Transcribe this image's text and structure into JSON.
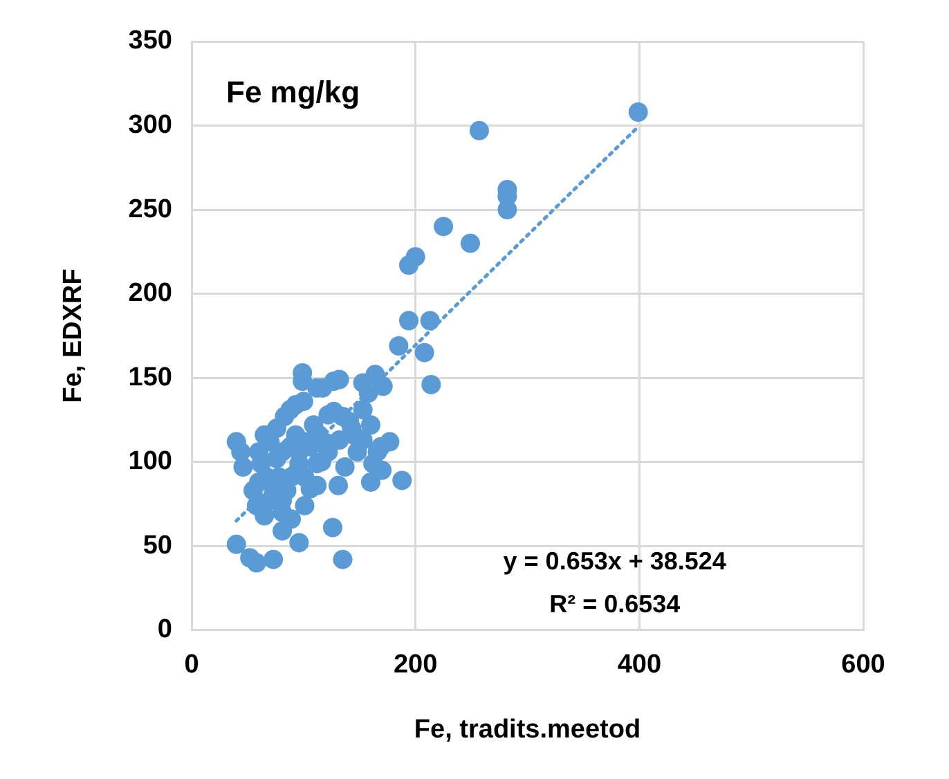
{
  "chart_data": {
    "type": "scatter",
    "title": "Fe mg/kg",
    "xlabel": "Fe, tradits.meetod",
    "ylabel": "Fe, EDXRF",
    "xlim": [
      0,
      600
    ],
    "xticks": [
      0,
      200,
      400,
      600
    ],
    "ylim": [
      0,
      350
    ],
    "yticks": [
      0,
      50,
      100,
      150,
      200,
      250,
      300,
      350
    ],
    "grid": true,
    "marker": "circle",
    "annotations": [
      "y = 0.653x + 38.524",
      "R² = 0.6534"
    ],
    "series": [
      {
        "type": "scatter",
        "color": "#5b9bd5",
        "x": [
          399,
          257,
          282,
          282,
          282,
          225,
          249,
          200,
          194,
          194,
          213,
          185,
          208,
          214,
          188,
          164,
          171,
          153,
          158,
          153,
          160,
          177,
          169,
          170,
          160,
          162,
          148,
          145,
          132,
          127,
          135,
          127,
          132,
          137,
          131,
          126,
          135,
          99,
          99,
          112,
          117,
          100,
          109,
          114,
          106,
          122,
          112,
          112,
          101,
          96,
          40,
          44,
          46,
          40,
          52,
          58,
          73,
          81,
          89,
          55,
          58,
          65,
          70,
          81,
          85,
          65,
          70,
          76,
          83,
          88,
          93,
          62,
          67,
          76,
          81,
          88,
          93,
          96,
          89,
          60,
          78,
          60,
          73,
          81,
          101,
          106,
          104,
          96,
          141,
          143,
          122,
          116,
          122,
          166,
          153
        ],
        "values": [
          308,
          297,
          262,
          258,
          250,
          240,
          230,
          222,
          217,
          184,
          184,
          169,
          165,
          146,
          89,
          152,
          145,
          147,
          141,
          131,
          122,
          112,
          109,
          95,
          88,
          99,
          106,
          116,
          149,
          148,
          127,
          130,
          113,
          97,
          86,
          61,
          42,
          153,
          148,
          144,
          144,
          136,
          122,
          116,
          109,
          111,
          99,
          86,
          74,
          52,
          112,
          106,
          97,
          51,
          43,
          40,
          42,
          59,
          66,
          83,
          74,
          68,
          77,
          77,
          83,
          116,
          112,
          120,
          127,
          131,
          134,
          99,
          91,
          102,
          106,
          109,
          116,
          99,
          91,
          106,
          91,
          88,
          81,
          70,
          91,
          84,
          112,
          106,
          124,
          120,
          128,
          100,
          106,
          106,
          113
        ]
      },
      {
        "type": "line",
        "color": "#5b9bd5",
        "x": [
          40,
          400
        ],
        "values": [
          65,
          300
        ],
        "line_style": "dotted",
        "marker": "none"
      }
    ]
  }
}
